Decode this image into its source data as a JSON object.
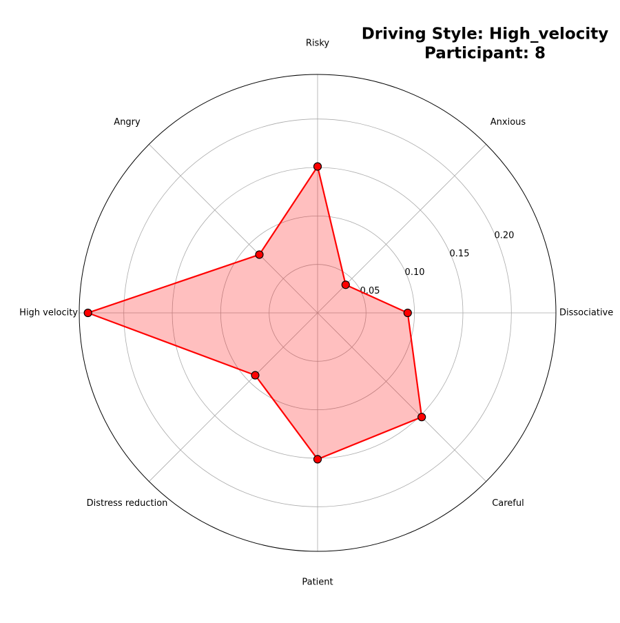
{
  "chart_data": {
    "type": "radar",
    "title": [
      "Driving Style: High_velocity",
      "Participant: 8"
    ],
    "title_color": "#00008b",
    "categories": [
      "Dissociative",
      "Anxious",
      "Risky",
      "Angry",
      "High velocity",
      "Distress reduction",
      "Patient",
      "Careful"
    ],
    "series": [
      {
        "name": "Participant 8",
        "color": "#ff0000",
        "values": [
          0.093,
          0.041,
          0.151,
          0.085,
          0.237,
          0.091,
          0.151,
          0.152
        ]
      }
    ],
    "ylim": [
      0,
      0.246
    ],
    "yticks": [
      0.05,
      {
        "value": 0.1,
        "label": "0.10"
      },
      0.15,
      {
        "value": 0.2,
        "label": "0.20"
      }
    ],
    "grid": true
  }
}
